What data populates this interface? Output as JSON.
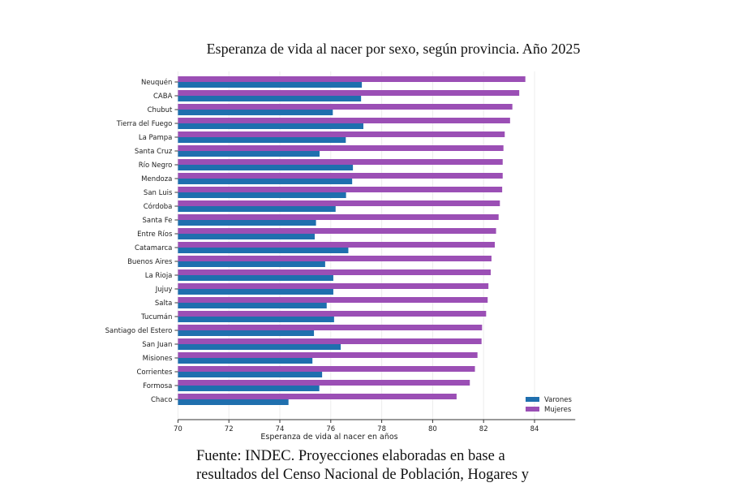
{
  "chart_data": {
    "type": "bar",
    "orientation": "horizontal",
    "title": "Esperanza de vida al nacer por sexo, según provincia. Año 2025",
    "xlabel": "Esperanza de vida al nacer en años",
    "ylabel": "",
    "xlim": [
      70,
      85.6
    ],
    "xticks": [
      "70",
      "72",
      "74",
      "76",
      "78",
      "80",
      "82",
      "84"
    ],
    "grid": "vertical",
    "legend_position": "bottom-right",
    "categories": [
      "Neuquén",
      "CABA",
      "Chubut",
      "Tierra del Fuego",
      "La Pampa",
      "Santa Cruz",
      "Río Negro",
      "Mendoza",
      "San Luis",
      "Córdoba",
      "Santa Fe",
      "Entre Ríos",
      "Catamarca",
      "Buenos Aires",
      "La Rioja",
      "Jujuy",
      "Salta",
      "Tucumán",
      "Santiago del Estero",
      "San Juan",
      "Misiones",
      "Corrientes",
      "Formosa",
      "Chaco"
    ],
    "series": [
      {
        "name": "Varones",
        "color": "#1f6fae",
        "values": [
          77.22,
          77.19,
          76.08,
          77.28,
          76.59,
          75.56,
          76.87,
          76.84,
          76.6,
          76.19,
          75.42,
          75.37,
          76.69,
          75.78,
          76.1,
          76.1,
          75.84,
          76.13,
          75.34,
          76.39,
          75.28,
          75.66,
          75.55,
          74.34
        ]
      },
      {
        "name": "Mujeres",
        "color": "#9b4fb5",
        "values": [
          83.64,
          83.4,
          83.13,
          83.04,
          82.83,
          82.78,
          82.75,
          82.75,
          82.73,
          82.64,
          82.59,
          82.49,
          82.44,
          82.31,
          82.28,
          82.19,
          82.16,
          82.1,
          81.94,
          81.92,
          81.76,
          81.66,
          81.46,
          80.94
        ]
      }
    ]
  },
  "footer": {
    "line1": "Fuente: INDEC. Proyecciones elaboradas en base a",
    "line2": "resultados del Censo Nacional de Población, Hogares y"
  }
}
